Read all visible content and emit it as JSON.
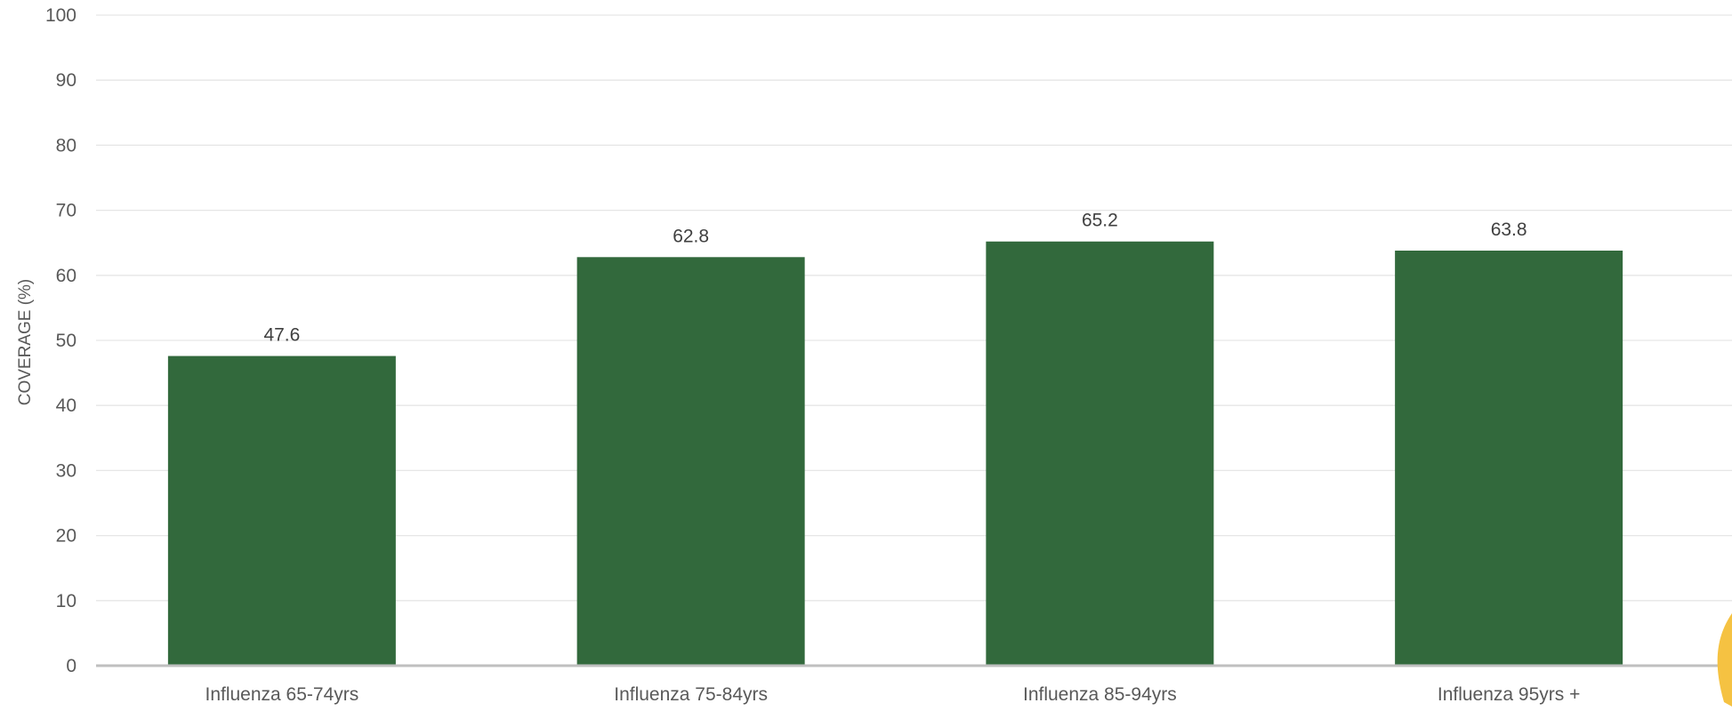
{
  "chart_data": {
    "type": "bar",
    "categories": [
      "Influenza 65-74yrs",
      "Influenza 75-84yrs",
      "Influenza 85-94yrs",
      "Influenza 95yrs +"
    ],
    "values": [
      47.6,
      62.8,
      65.2,
      63.8
    ],
    "data_labels": [
      "47.6",
      "62.8",
      "65.2",
      "63.8"
    ],
    "ylabel": "COVERAGE (%)",
    "ylim": [
      0,
      100
    ],
    "yticks": [
      0,
      10,
      20,
      30,
      40,
      50,
      60,
      70,
      80,
      90,
      100
    ],
    "grid": true,
    "legend": "none",
    "colors": {
      "bar": "#32693c",
      "grid": "#e6e6e6",
      "baseline": "#bfbfbf",
      "decoration": "#f5c242"
    }
  }
}
